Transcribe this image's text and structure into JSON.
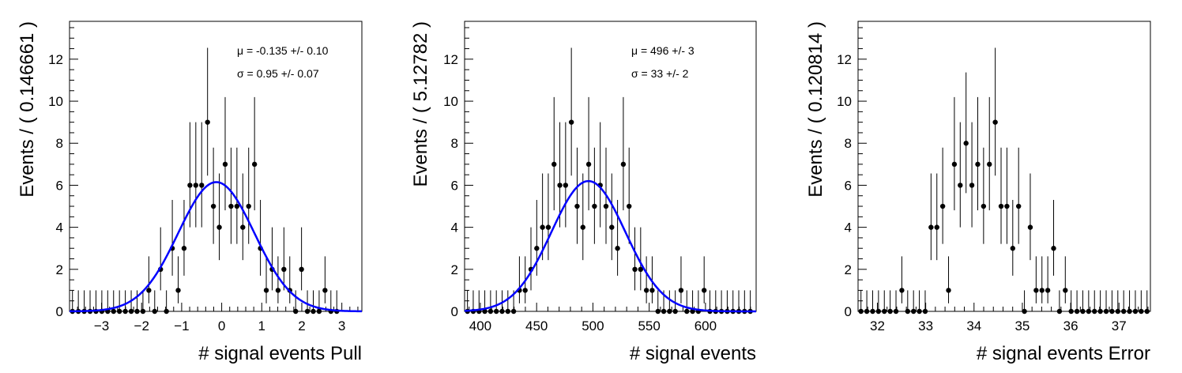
{
  "chart_data": [
    {
      "type": "scatter",
      "title": "",
      "xlabel": "# signal events Pull",
      "ylabel": "Events / ( 0.146661 )",
      "xlim": [
        -3.8,
        3.5
      ],
      "ylim": [
        0,
        13.8
      ],
      "xticks": [
        -3,
        -2,
        -1,
        0,
        1,
        2,
        3
      ],
      "yticks": [
        0,
        2,
        4,
        6,
        8,
        10,
        12
      ],
      "bin_width": 0.146661,
      "points": [
        0,
        0,
        0,
        0,
        0,
        0,
        0,
        0,
        0,
        0,
        0,
        0,
        0,
        1,
        0,
        2,
        0,
        3,
        1,
        3,
        6,
        6,
        6,
        9,
        5,
        4,
        7,
        5,
        5,
        4,
        5,
        7,
        3,
        1,
        2,
        1,
        2,
        1,
        0,
        2,
        0,
        0,
        0,
        1,
        0,
        0
      ],
      "stats": {
        "mu": "μ = -0.135 +/- 0.10",
        "sigma": "σ =  0.95 +/- 0.07"
      },
      "fit": {
        "type": "gaussian",
        "mean": -0.135,
        "sigma": 0.95,
        "peak": 6.15,
        "color": "#0000ff"
      }
    },
    {
      "type": "scatter",
      "title": "",
      "xlabel": "# signal events",
      "ylabel": "Events / ( 5.12782 )",
      "xlim": [
        386,
        645
      ],
      "ylim": [
        0,
        13.8
      ],
      "xticks": [
        400,
        450,
        500,
        550,
        600
      ],
      "yticks": [
        0,
        2,
        4,
        6,
        8,
        10,
        12
      ],
      "bin_width": 5.12782,
      "points": [
        0,
        0,
        0,
        0,
        0,
        0,
        0,
        0,
        0,
        1,
        1,
        2,
        3,
        4,
        4,
        7,
        6,
        6,
        9,
        5,
        4,
        7,
        5,
        6,
        5,
        4,
        3,
        7,
        5,
        2,
        2,
        1,
        1,
        0,
        0,
        0,
        0,
        1,
        0,
        0,
        0,
        1,
        0,
        0,
        0,
        0,
        0,
        0,
        0,
        0
      ],
      "stats": {
        "mu": "μ =  496 +/- 3",
        "sigma": "σ =  33 +/- 2"
      },
      "fit": {
        "type": "gaussian",
        "mean": 496,
        "sigma": 33,
        "peak": 6.2,
        "color": "#0000ff"
      }
    },
    {
      "type": "scatter",
      "title": "",
      "xlabel": "# signal events Error",
      "ylabel": "Events / ( 0.120814 )",
      "xlim": [
        31.6,
        37.65
      ],
      "ylim": [
        0,
        13.8
      ],
      "xticks": [
        32,
        33,
        34,
        35,
        36,
        37
      ],
      "yticks": [
        0,
        2,
        4,
        6,
        8,
        10,
        12
      ],
      "bin_width": 0.120814,
      "points": [
        0,
        0,
        0,
        0,
        0,
        0,
        0,
        1,
        0,
        0,
        0,
        0,
        4,
        4,
        5,
        1,
        7,
        6,
        8,
        6,
        7,
        5,
        7,
        9,
        5,
        5,
        3,
        5,
        0,
        4,
        1,
        1,
        1,
        3,
        0,
        1,
        0,
        0,
        0,
        0,
        0,
        0,
        0,
        0,
        0,
        0,
        0,
        0,
        0,
        0
      ]
    }
  ]
}
